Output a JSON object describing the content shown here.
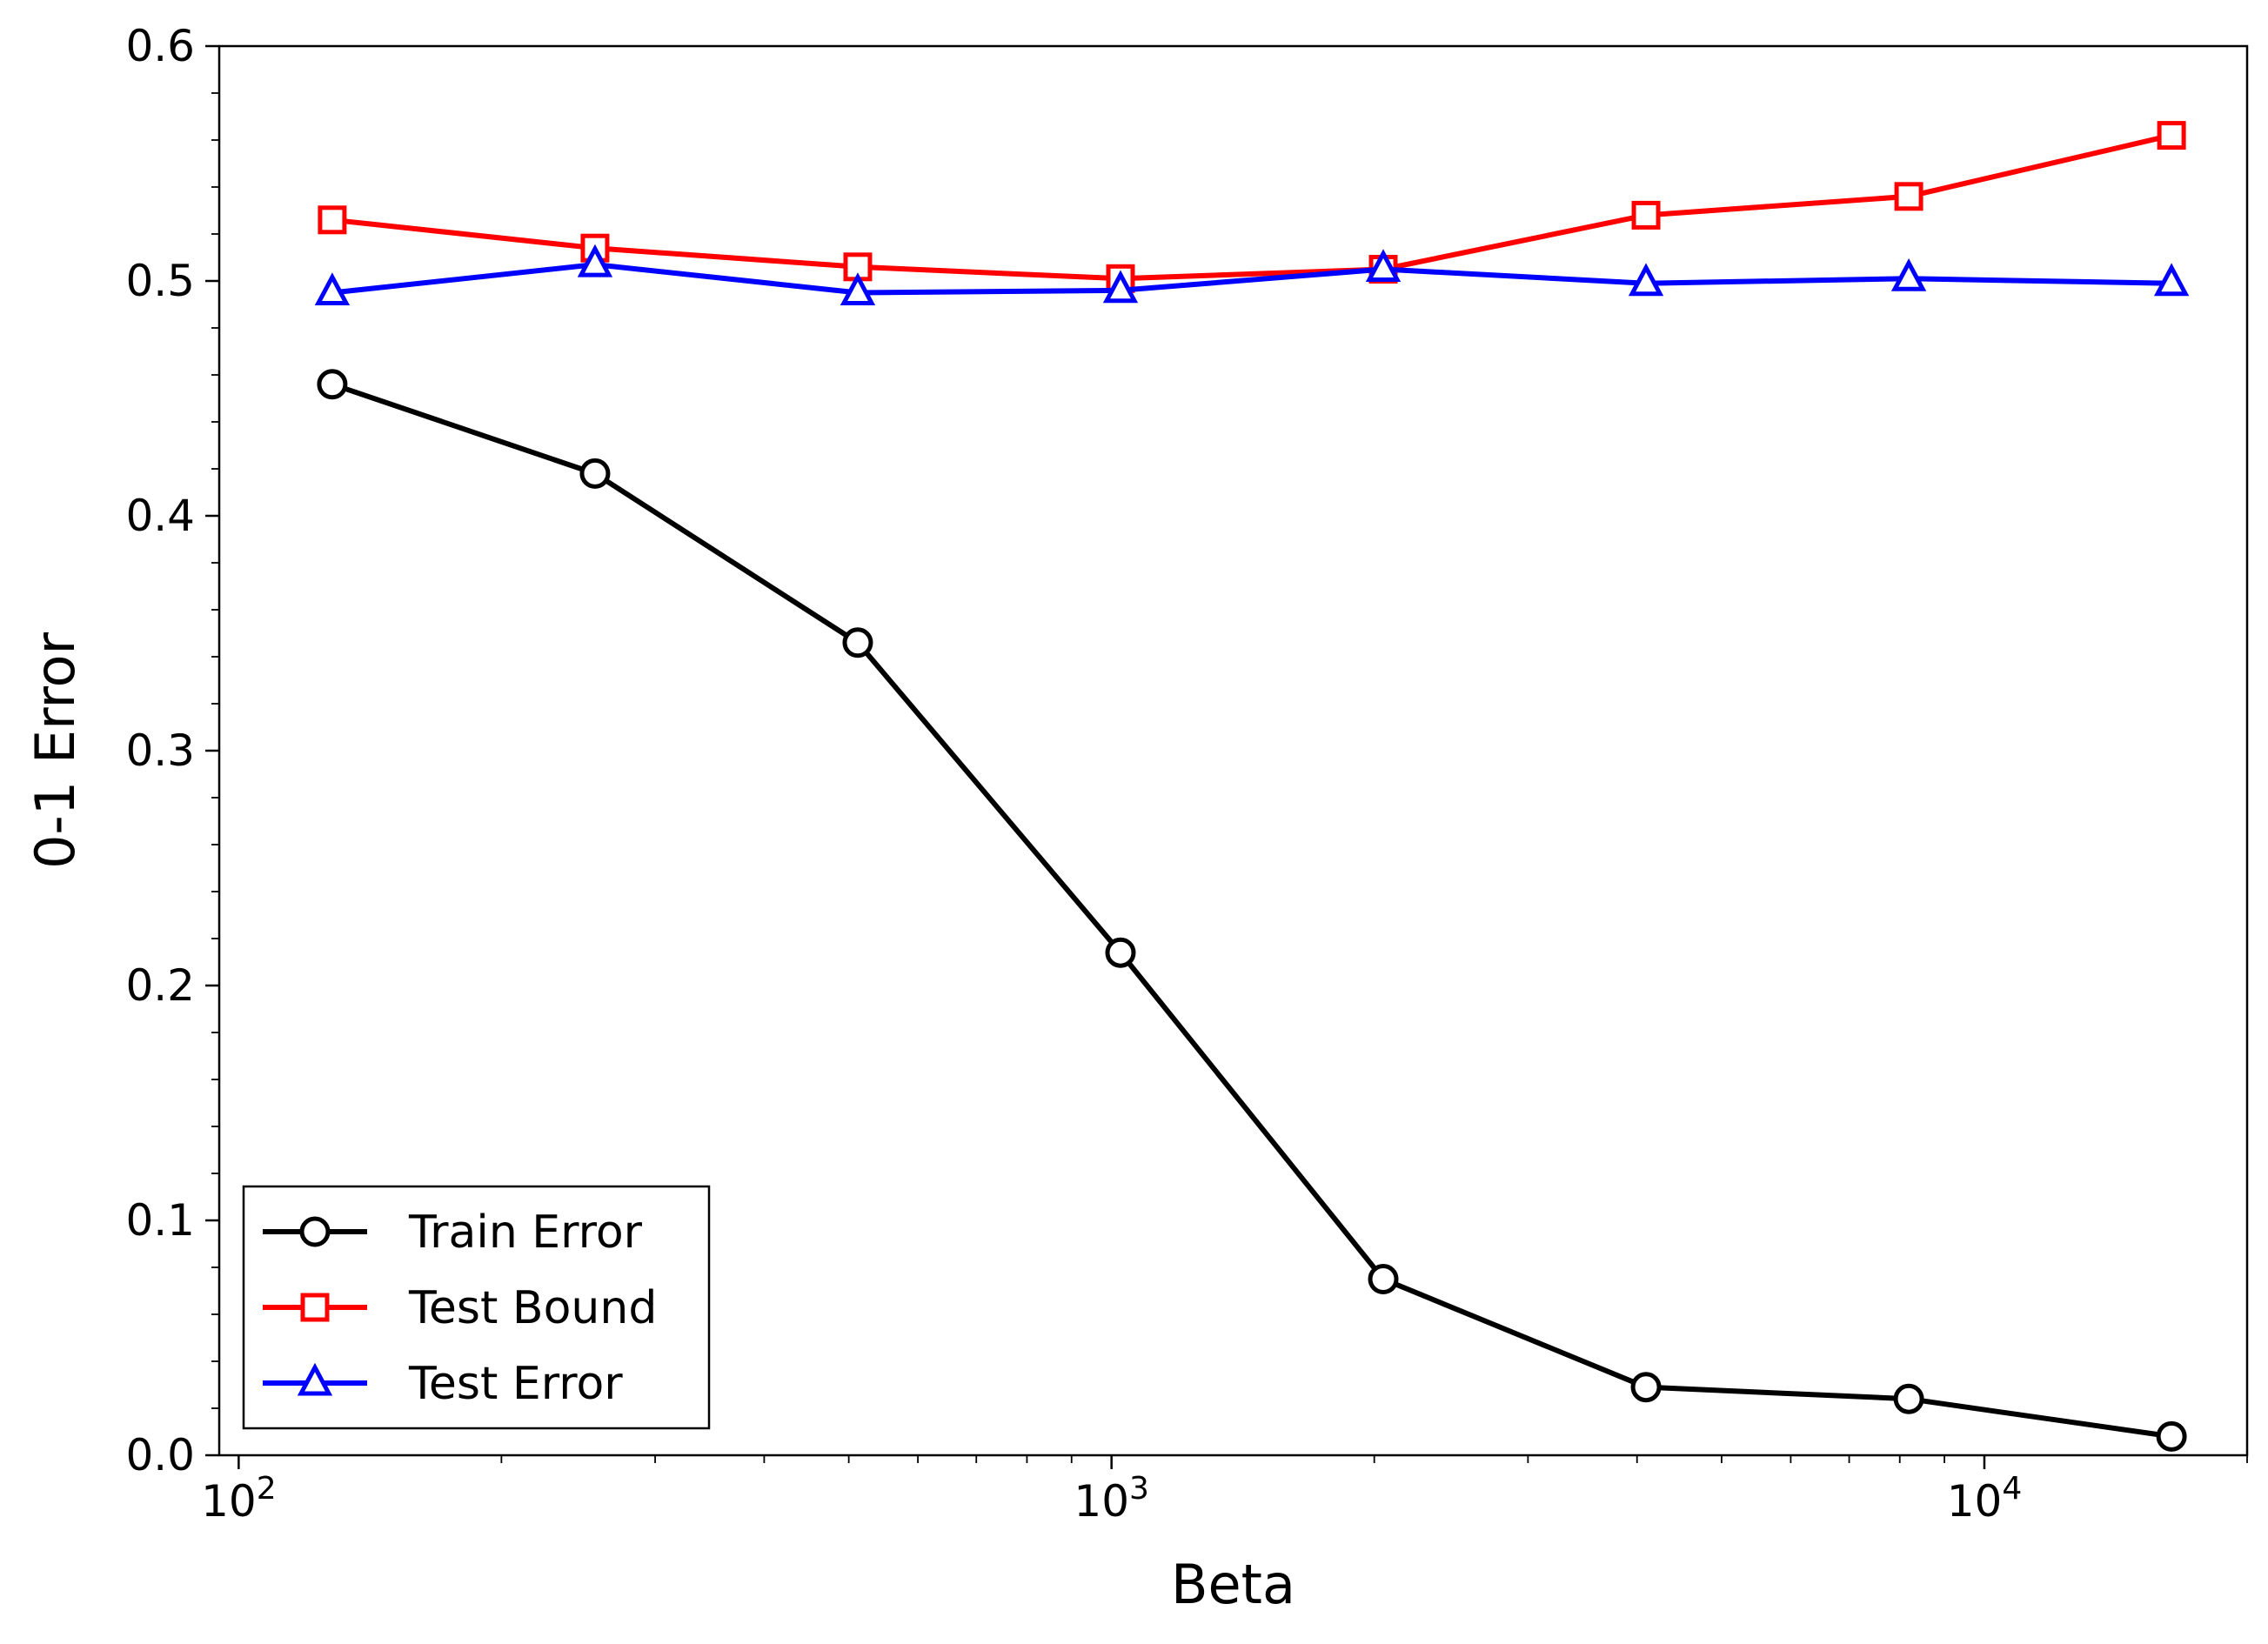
{
  "chart_data": {
    "type": "line",
    "title": "",
    "xlabel": "Beta",
    "ylabel": "0-1 Error",
    "xscale": "log",
    "xlim": [
      95,
      20000
    ],
    "ylim": [
      0.0,
      0.6
    ],
    "x": [
      128,
      256,
      512,
      1024,
      2048,
      4096,
      8192,
      16384
    ],
    "xticks": [
      {
        "value": 100,
        "base": "10",
        "exp": "2"
      },
      {
        "value": 1000,
        "base": "10",
        "exp": "3"
      },
      {
        "value": 10000,
        "base": "10",
        "exp": "4"
      }
    ],
    "yticks": [
      {
        "value": 0.0,
        "label": "0.0"
      },
      {
        "value": 0.1,
        "label": "0.1"
      },
      {
        "value": 0.2,
        "label": "0.2"
      },
      {
        "value": 0.3,
        "label": "0.3"
      },
      {
        "value": 0.4,
        "label": "0.4"
      },
      {
        "value": 0.5,
        "label": "0.5"
      },
      {
        "value": 0.6,
        "label": "0.6"
      }
    ],
    "grid": false,
    "legend_position": "bottom-left",
    "series": [
      {
        "name": "Train Error",
        "color": "#000000",
        "marker": "circle",
        "values": [
          0.456,
          0.418,
          0.346,
          0.214,
          0.075,
          0.029,
          0.024,
          0.008
        ]
      },
      {
        "name": "Test Bound",
        "color": "#ff0000",
        "marker": "square",
        "values": [
          0.526,
          0.514,
          0.506,
          0.501,
          0.505,
          0.528,
          0.536,
          0.562
        ]
      },
      {
        "name": "Test Error",
        "color": "#0000ff",
        "marker": "triangle",
        "values": [
          0.495,
          0.507,
          0.495,
          0.496,
          0.505,
          0.499,
          0.501,
          0.499
        ]
      }
    ]
  }
}
